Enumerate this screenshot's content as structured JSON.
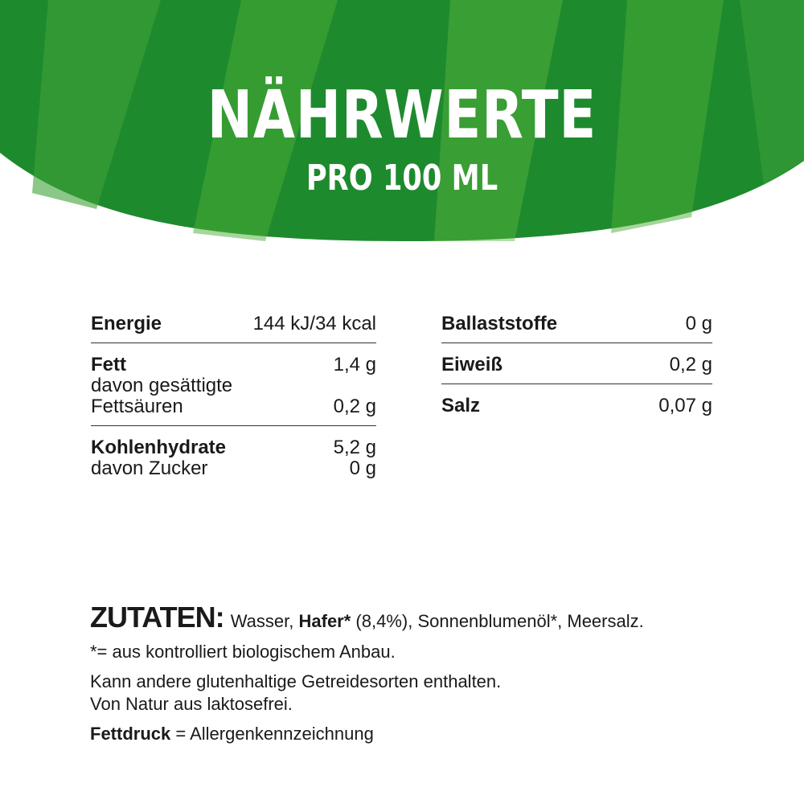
{
  "header": {
    "title": "NÄHRWERTE",
    "subtitle": "PRO 100 ML"
  },
  "colors": {
    "green_dark": "#1e8a2e",
    "green_light": "#4cae35",
    "text": "#1a1a1a"
  },
  "nutrition_left": [
    {
      "rows": [
        {
          "label": "Energie",
          "value": "144 kJ/34 kcal",
          "bold": true
        }
      ]
    },
    {
      "rows": [
        {
          "label": "Fett",
          "value": "1,4 g",
          "bold": true
        },
        {
          "label": "davon gesättigte",
          "value": "",
          "bold": false
        },
        {
          "label": "Fettsäuren",
          "value": "0,2 g",
          "bold": false
        }
      ]
    },
    {
      "rows": [
        {
          "label": "Kohlenhydrate",
          "value": "5,2 g",
          "bold": true
        },
        {
          "label": "davon Zucker",
          "value": "0 g",
          "bold": false
        }
      ]
    }
  ],
  "nutrition_right": [
    {
      "rows": [
        {
          "label": "Ballaststoffe",
          "value": "0 g",
          "bold": true
        }
      ]
    },
    {
      "rows": [
        {
          "label": "Eiweiß",
          "value": "0,2 g",
          "bold": true
        }
      ]
    },
    {
      "rows": [
        {
          "label": "Salz",
          "value": "0,07 g",
          "bold": true
        }
      ]
    }
  ],
  "ingredients": {
    "heading": "ZUTATEN:",
    "part1": " Wasser, ",
    "bold1": "Hafer*",
    "part2": " (8,4%), Sonnenblumenöl*, Meersalz.",
    "footnote": "*= aus kontrolliert biologischem Anbau.",
    "gluten": "Kann andere glutenhaltige Getreidesorten enthalten.",
    "lactose": "Von Natur aus laktosefrei.",
    "legend_bold": "Fettdruck",
    "legend_rest": " = Allergenkennzeichnung"
  }
}
